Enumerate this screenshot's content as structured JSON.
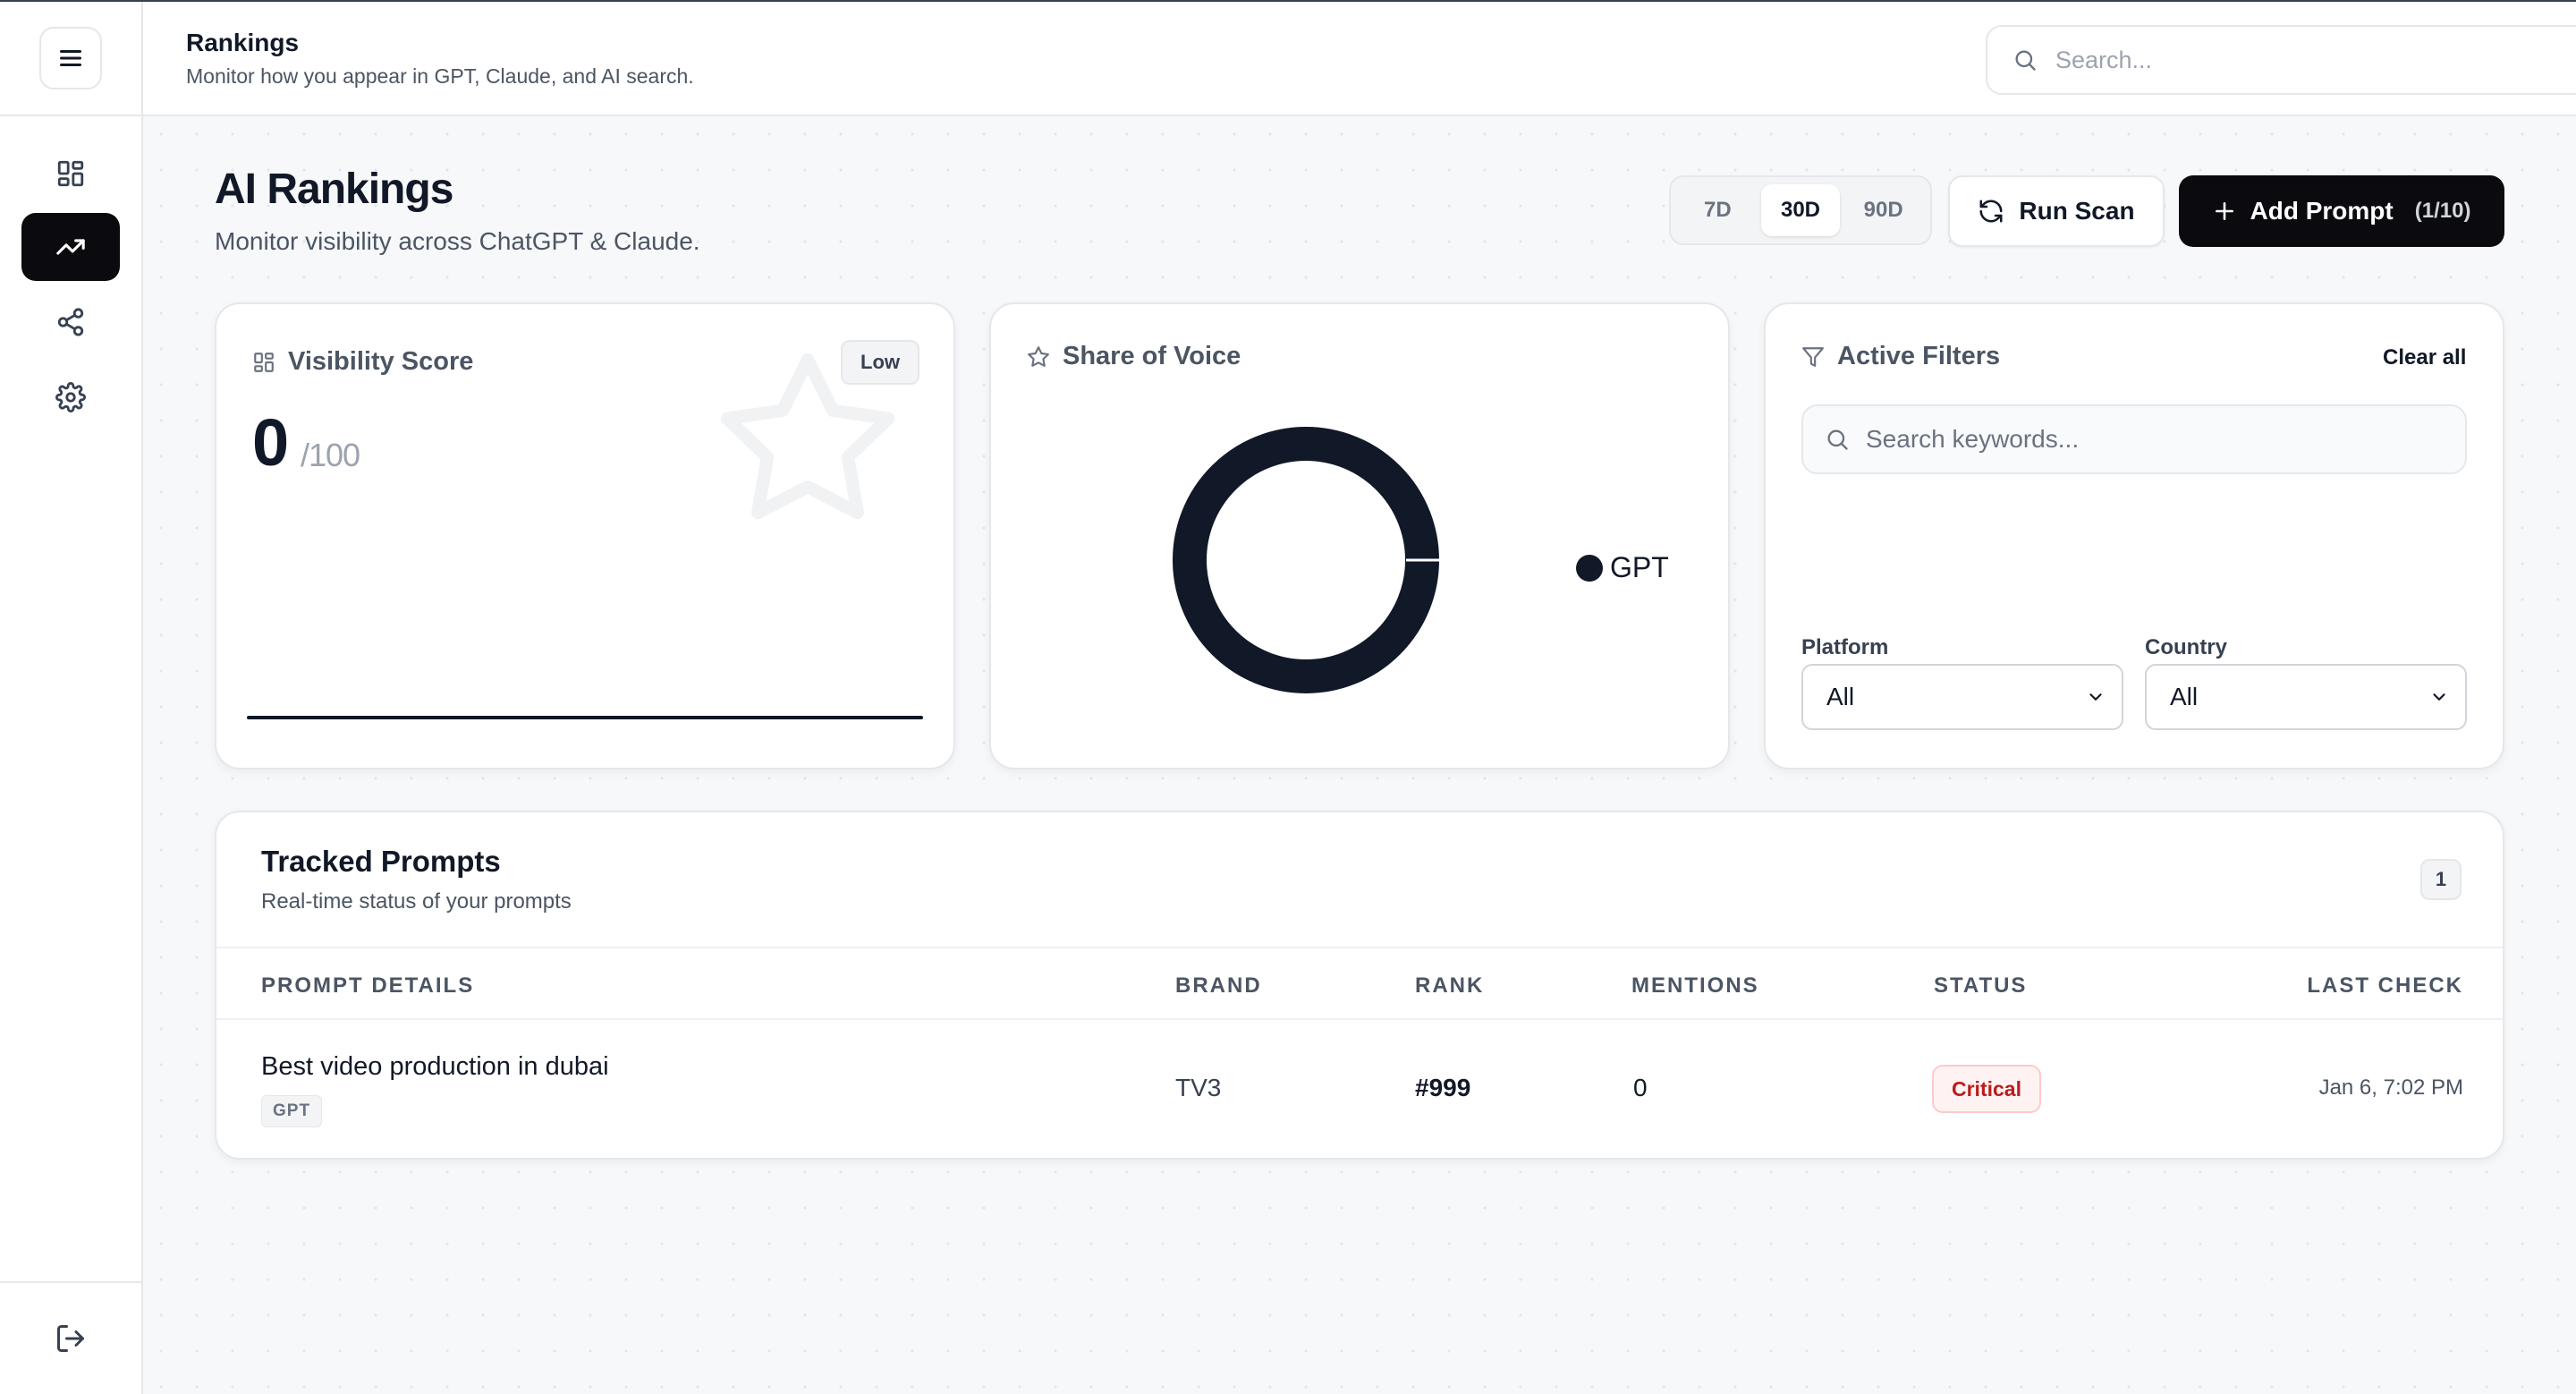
{
  "header": {
    "title": "Rankings",
    "subtitle": "Monitor how you appear in GPT, Claude, and AI search.",
    "search_placeholder": "Search..."
  },
  "sidebar": {
    "items": [
      {
        "name": "dashboard",
        "icon": "grid-icon",
        "active": false
      },
      {
        "name": "rankings",
        "icon": "trending-up-icon",
        "active": true
      },
      {
        "name": "share",
        "icon": "share-icon",
        "active": false
      },
      {
        "name": "settings",
        "icon": "gear-icon",
        "active": false
      }
    ],
    "bottom_icon": "logout-icon"
  },
  "page": {
    "title": "AI Rankings",
    "subtitle": "Monitor visibility across ChatGPT & Claude."
  },
  "toolbar": {
    "ranges": [
      "7D",
      "30D",
      "90D"
    ],
    "active_range": "30D",
    "run_scan_label": "Run Scan",
    "add_prompt_label": "Add Prompt",
    "add_prompt_count": "(1/10)"
  },
  "visibility": {
    "title": "Visibility Score",
    "badge": "Low",
    "score": "0",
    "max": "/100"
  },
  "share_of_voice": {
    "title": "Share of Voice",
    "legend": [
      "GPT"
    ],
    "series": [
      {
        "name": "GPT",
        "value": 100,
        "color": "#111827"
      }
    ]
  },
  "filters": {
    "title": "Active Filters",
    "clear_label": "Clear all",
    "keyword_placeholder": "Search keywords...",
    "platform_label": "Platform",
    "platform_value": "All",
    "country_label": "Country",
    "country_value": "All"
  },
  "tracked": {
    "title": "Tracked Prompts",
    "subtitle": "Real-time status of your prompts",
    "count": "1",
    "columns": [
      "PROMPT DETAILS",
      "BRAND",
      "RANK",
      "MENTIONS",
      "STATUS",
      "LAST CHECK"
    ],
    "rows": [
      {
        "prompt": "Best video production in dubai",
        "platform": "GPT",
        "brand": "TV3",
        "rank": "#999",
        "mentions": "0",
        "status": "Critical",
        "last_check": "Jan 6, 7:02 PM"
      }
    ]
  },
  "colors": {
    "accent": "#0b0b0f",
    "critical_text": "#b91c1c",
    "critical_bg": "#fef2f2"
  }
}
